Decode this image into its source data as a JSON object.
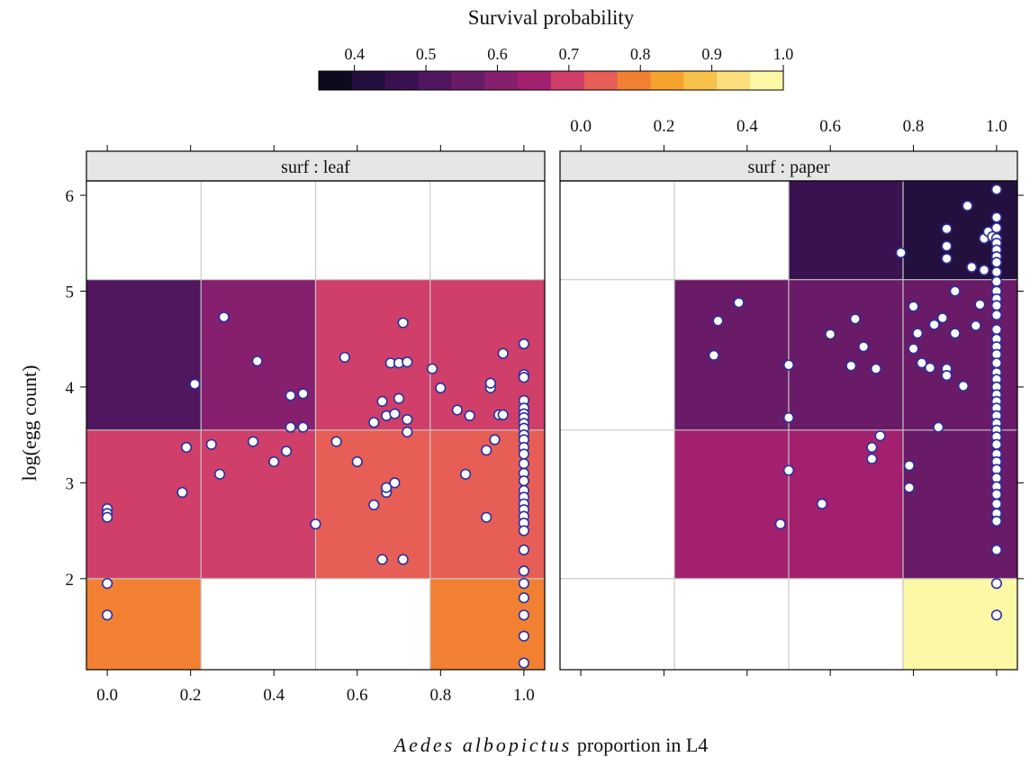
{
  "colorbar": {
    "title": "Survival probability",
    "ticks": [
      "0.4",
      "0.5",
      "0.6",
      "0.7",
      "0.8",
      "0.9",
      "1.0"
    ],
    "tick_values": [
      0.4,
      0.5,
      0.6,
      0.7,
      0.8,
      0.9,
      1.0
    ],
    "range": [
      0.35,
      1.0
    ],
    "colors": [
      "#0d0a1e",
      "#24103f",
      "#3a1250",
      "#50175e",
      "#6a1b67",
      "#861f6d",
      "#a3206f",
      "#cf3f69",
      "#e65e55",
      "#f18032",
      "#f6a32e",
      "#f8c24a",
      "#fcdf7c",
      "#fbf8a6"
    ]
  },
  "axes": {
    "xlabel_italic": "Aedes albopictus",
    "xlabel_rest": " proportion in L4",
    "ylabel": "log(egg count)",
    "x_ticks": [
      "0.0",
      "0.2",
      "0.4",
      "0.6",
      "0.8",
      "1.0"
    ],
    "x_tick_values": [
      0.0,
      0.2,
      0.4,
      0.6,
      0.8,
      1.0
    ],
    "y_ticks": [
      "2",
      "3",
      "4",
      "5",
      "6"
    ],
    "y_tick_values": [
      2,
      3,
      4,
      5,
      6
    ]
  },
  "chart_data": {
    "type": "heatmap",
    "xlim": [
      -0.05,
      1.05
    ],
    "ylim": [
      1.05,
      6.15
    ],
    "x_bins": [
      -0.05,
      0.225,
      0.5,
      0.775,
      1.05
    ],
    "y_bins": [
      1.05,
      2.0,
      3.55,
      5.12,
      6.15
    ],
    "grid": true,
    "panels": [
      {
        "strip": "surf : leaf",
        "cells": [
          [
            0.79,
            null,
            null,
            0.79
          ],
          [
            0.69,
            0.7,
            0.73,
            0.73
          ],
          [
            0.52,
            0.6,
            0.7,
            0.7
          ],
          [
            null,
            null,
            null,
            null
          ]
        ],
        "points": {
          "x": [
            0.0,
            0.0,
            0.0,
            0.0,
            0.0,
            0.18,
            0.19,
            0.21,
            0.25,
            0.27,
            0.28,
            0.35,
            0.36,
            0.4,
            0.43,
            0.44,
            0.44,
            0.47,
            0.47,
            0.5,
            0.55,
            0.57,
            0.6,
            0.64,
            0.64,
            0.66,
            0.66,
            0.67,
            0.67,
            0.67,
            0.68,
            0.69,
            0.69,
            0.7,
            0.7,
            0.71,
            0.71,
            0.72,
            0.72,
            0.72,
            0.78,
            0.8,
            0.84,
            0.86,
            0.87,
            0.91,
            0.91,
            0.92,
            0.92,
            0.93,
            0.94,
            0.95,
            0.95
          ],
          "y": [
            2.73,
            2.68,
            2.64,
            1.95,
            1.62,
            2.9,
            3.37,
            4.03,
            3.4,
            3.09,
            4.73,
            3.43,
            4.27,
            3.22,
            3.33,
            3.58,
            3.91,
            3.93,
            3.58,
            2.57,
            3.43,
            4.31,
            3.22,
            3.63,
            2.77,
            3.85,
            2.2,
            2.9,
            2.95,
            3.7,
            4.25,
            3.72,
            3.0,
            4.25,
            3.88,
            2.2,
            4.67,
            4.26,
            3.66,
            3.53,
            4.19,
            3.99,
            3.76,
            3.09,
            3.7,
            2.64,
            3.34,
            3.99,
            4.04,
            3.45,
            3.71,
            4.35,
            3.71
          ]
        },
        "column_at_1": [
          4.45,
          4.13,
          4.1,
          3.86,
          3.78,
          3.72,
          3.68,
          3.62,
          3.57,
          3.5,
          3.45,
          3.37,
          3.3,
          3.2,
          3.1,
          3.02,
          2.92,
          2.85,
          2.78,
          2.72,
          2.65,
          2.58,
          2.5,
          2.3,
          2.08,
          1.95,
          1.8,
          1.62,
          1.4,
          1.12
        ]
      },
      {
        "strip": "surf : paper",
        "cells": [
          [
            null,
            null,
            null,
            0.98
          ],
          [
            null,
            0.63,
            0.63,
            0.58
          ],
          [
            null,
            0.58,
            0.58,
            0.58
          ],
          [
            null,
            null,
            0.46,
            0.41
          ]
        ],
        "points": {
          "x": [
            0.32,
            0.33,
            0.38,
            0.5,
            0.5,
            0.5,
            0.48,
            0.58,
            0.6,
            0.65,
            0.66,
            0.68,
            0.7,
            0.7,
            0.71,
            0.72,
            0.77,
            0.79,
            0.79,
            0.8,
            0.8,
            0.81,
            0.82,
            0.84,
            0.85,
            0.86,
            0.87,
            0.88,
            0.88,
            0.88,
            0.88,
            0.88,
            0.9,
            0.9,
            0.92,
            0.93,
            0.94,
            0.95,
            0.96,
            0.97,
            0.97,
            0.98,
            0.99
          ],
          "y": [
            4.33,
            4.69,
            4.88,
            4.23,
            3.68,
            3.13,
            2.57,
            2.78,
            4.55,
            4.22,
            4.71,
            4.42,
            3.37,
            3.25,
            4.19,
            3.49,
            5.4,
            3.18,
            2.95,
            4.84,
            4.4,
            4.56,
            4.25,
            4.2,
            4.65,
            3.58,
            4.72,
            4.19,
            5.65,
            5.47,
            5.34,
            4.12,
            5.0,
            4.56,
            4.01,
            5.89,
            5.25,
            4.64,
            4.86,
            5.55,
            5.22,
            5.62,
            5.57
          ]
        },
        "column_at_1": [
          6.06,
          5.77,
          5.66,
          5.55,
          5.5,
          5.43,
          5.36,
          5.3,
          5.2,
          5.1,
          5.0,
          4.92,
          4.85,
          4.75,
          4.6,
          4.5,
          4.42,
          4.34,
          4.25,
          4.15,
          4.08,
          4.0,
          3.92,
          3.85,
          3.78,
          3.7,
          3.62,
          3.55,
          3.48,
          3.4,
          3.3,
          3.22,
          3.14,
          3.05,
          2.96,
          2.88,
          2.78,
          2.68,
          2.6,
          2.3,
          1.95,
          1.62
        ]
      }
    ]
  }
}
